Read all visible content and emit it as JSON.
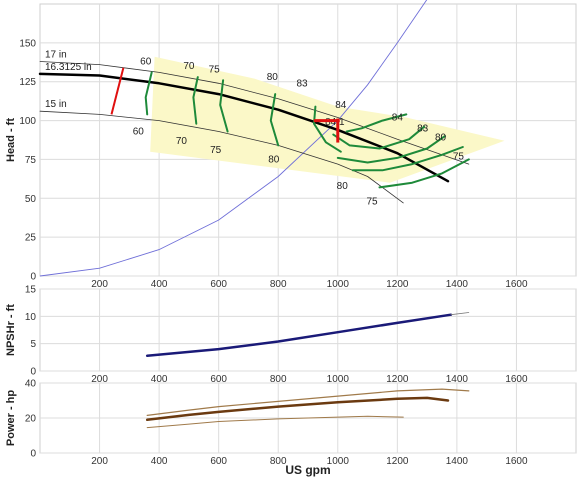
{
  "chart_data": [
    {
      "type": "line",
      "panel": "head",
      "ylabel": "Head - ft",
      "xlim": [
        0,
        1800
      ],
      "ylim": [
        0,
        175
      ],
      "xticks": [
        200,
        400,
        600,
        800,
        1000,
        1200,
        1400,
        1600
      ],
      "yticks": [
        0,
        25,
        50,
        75,
        100,
        125,
        150
      ],
      "grid": true,
      "colors": {
        "impeller": "#333333",
        "selected": "#000000",
        "efficiency": "#1e8a3a",
        "system": "#6f6fd8",
        "region": "#fbf8c8",
        "marker": "#e01010"
      },
      "impeller_curves": [
        {
          "label": "17 in",
          "points": [
            [
              0,
              138
            ],
            [
              200,
              136
            ],
            [
              400,
              131
            ],
            [
              600,
              124
            ],
            [
              800,
              114
            ],
            [
              1000,
              102
            ],
            [
              1200,
              88
            ],
            [
              1440,
              72
            ]
          ]
        },
        {
          "label": "16.3125 in",
          "selected": true,
          "points": [
            [
              0,
              130
            ],
            [
              200,
              129
            ],
            [
              400,
              124
            ],
            [
              600,
              117
            ],
            [
              800,
              107
            ],
            [
              1000,
              94
            ],
            [
              1200,
              79
            ],
            [
              1370,
              61
            ]
          ]
        },
        {
          "label": "15 in",
          "points": [
            [
              0,
              106
            ],
            [
              200,
              104
            ],
            [
              400,
              100
            ],
            [
              600,
              93
            ],
            [
              800,
              84
            ],
            [
              1000,
              72
            ],
            [
              1100,
              64
            ],
            [
              1220,
              47
            ]
          ]
        }
      ],
      "efficiency_contours": [
        {
          "points": [
            [
              375,
              131
            ],
            [
              355,
              115
            ],
            [
              360,
              104
            ]
          ]
        },
        {
          "points": [
            [
              530,
              128
            ],
            [
              515,
              115
            ],
            [
              525,
              98
            ]
          ]
        },
        {
          "points": [
            [
              615,
              126
            ],
            [
              605,
              110
            ],
            [
              630,
              93
            ]
          ]
        },
        {
          "points": [
            [
              790,
              117
            ],
            [
              775,
              100
            ],
            [
              800,
              84
            ]
          ]
        },
        {
          "points": [
            [
              925,
              109
            ],
            [
              920,
              98
            ],
            [
              960,
              86
            ],
            [
              1010,
              80
            ]
          ]
        },
        {
          "points": [
            [
              1030,
              93
            ],
            [
              1080,
              95
            ],
            [
              1150,
              100
            ],
            [
              1230,
              104
            ]
          ]
        },
        {
          "points": [
            [
              985,
              91
            ],
            [
              1040,
              84
            ],
            [
              1140,
              82
            ],
            [
              1240,
              88
            ],
            [
              1290,
              96
            ]
          ]
        },
        {
          "points": [
            [
              1000,
              76
            ],
            [
              1100,
              73
            ],
            [
              1200,
              76
            ],
            [
              1300,
              82
            ],
            [
              1360,
              90
            ]
          ]
        },
        {
          "points": [
            [
              1050,
              68
            ],
            [
              1150,
              68
            ],
            [
              1250,
              72
            ],
            [
              1350,
              78
            ],
            [
              1420,
              83
            ]
          ]
        },
        {
          "points": [
            [
              1140,
              57
            ],
            [
              1250,
              60
            ],
            [
              1350,
              66
            ],
            [
              1440,
              75
            ]
          ]
        }
      ],
      "efficiency_labels": [
        {
          "text": "60",
          "x": 355,
          "y": 138
        },
        {
          "text": "70",
          "x": 500,
          "y": 135
        },
        {
          "text": "75",
          "x": 585,
          "y": 133
        },
        {
          "text": "80",
          "x": 780,
          "y": 128
        },
        {
          "text": "83",
          "x": 880,
          "y": 124
        },
        {
          "text": "84",
          "x": 1010,
          "y": 110
        },
        {
          "text": "84.1",
          "x": 990,
          "y": 99
        },
        {
          "text": "84",
          "x": 1200,
          "y": 102
        },
        {
          "text": "83",
          "x": 1285,
          "y": 95
        },
        {
          "text": "80",
          "x": 1345,
          "y": 89
        },
        {
          "text": "75",
          "x": 1405,
          "y": 77
        },
        {
          "text": "60",
          "x": 330,
          "y": 93
        },
        {
          "text": "70",
          "x": 475,
          "y": 87
        },
        {
          "text": "75",
          "x": 590,
          "y": 81
        },
        {
          "text": "80",
          "x": 785,
          "y": 75
        },
        {
          "text": "80",
          "x": 1015,
          "y": 58
        },
        {
          "text": "75",
          "x": 1115,
          "y": 48
        }
      ],
      "operating_region": [
        [
          385,
          141
        ],
        [
          720,
          127
        ],
        [
          1000,
          109
        ],
        [
          1230,
          102
        ],
        [
          1560,
          87
        ],
        [
          1175,
          60
        ],
        [
          370,
          80
        ]
      ],
      "system_curve": [
        [
          0,
          0
        ],
        [
          200,
          5
        ],
        [
          400,
          17
        ],
        [
          600,
          36
        ],
        [
          800,
          64
        ],
        [
          1000,
          100
        ],
        [
          1100,
          123
        ],
        [
          1200,
          150
        ],
        [
          1300,
          178
        ]
      ],
      "duty_point": [
        1000,
        100
      ],
      "min_flow_line": [
        [
          240,
          104
        ],
        [
          280,
          134
        ]
      ]
    },
    {
      "type": "line",
      "panel": "npshr",
      "ylabel": "NPSHr - ft",
      "xlim": [
        0,
        1800
      ],
      "ylim": [
        0,
        15
      ],
      "xticks": [
        200,
        400,
        600,
        800,
        1000,
        1200,
        1400,
        1600
      ],
      "yticks": [
        0,
        5,
        10,
        15
      ],
      "grid": true,
      "series": [
        {
          "color": "#1a1a78",
          "width": 2.5,
          "points": [
            [
              360,
              2.8
            ],
            [
              600,
              4.0
            ],
            [
              800,
              5.4
            ],
            [
              1000,
              7.1
            ],
            [
              1200,
              8.8
            ],
            [
              1380,
              10.3
            ]
          ]
        },
        {
          "color": "#777777",
          "width": 0.8,
          "points": [
            [
              1380,
              10.3
            ],
            [
              1440,
              10.7
            ]
          ]
        }
      ]
    },
    {
      "type": "line",
      "panel": "power",
      "ylabel": "Power - hp",
      "xlabel": "US gpm",
      "xlim": [
        0,
        1800
      ],
      "ylim": [
        0,
        40
      ],
      "xticks": [
        200,
        400,
        600,
        800,
        1000,
        1200,
        1400,
        1600
      ],
      "yticks": [
        0,
        20,
        40
      ],
      "grid": true,
      "series": [
        {
          "name": "17 in",
          "color": "#a07a4a",
          "width": 1.2,
          "points": [
            [
              360,
              21.5
            ],
            [
              500,
              24.5
            ],
            [
              600,
              26.5
            ],
            [
              800,
              29.5
            ],
            [
              1000,
              32.5
            ],
            [
              1200,
              35.5
            ],
            [
              1350,
              36.5
            ],
            [
              1440,
              35.5
            ]
          ]
        },
        {
          "name": "16.3125 in",
          "color": "#6b3a10",
          "width": 2.5,
          "points": [
            [
              360,
              19.0
            ],
            [
              500,
              21.8
            ],
            [
              600,
              23.5
            ],
            [
              800,
              26.5
            ],
            [
              1000,
              29.0
            ],
            [
              1200,
              31.0
            ],
            [
              1300,
              31.5
            ],
            [
              1370,
              30.0
            ]
          ]
        },
        {
          "name": "15 in",
          "color": "#a07a4a",
          "width": 1.0,
          "points": [
            [
              360,
              14.5
            ],
            [
              500,
              16.5
            ],
            [
              600,
              18.0
            ],
            [
              800,
              19.5
            ],
            [
              1000,
              20.5
            ],
            [
              1100,
              21.0
            ],
            [
              1220,
              20.5
            ]
          ]
        }
      ]
    }
  ]
}
